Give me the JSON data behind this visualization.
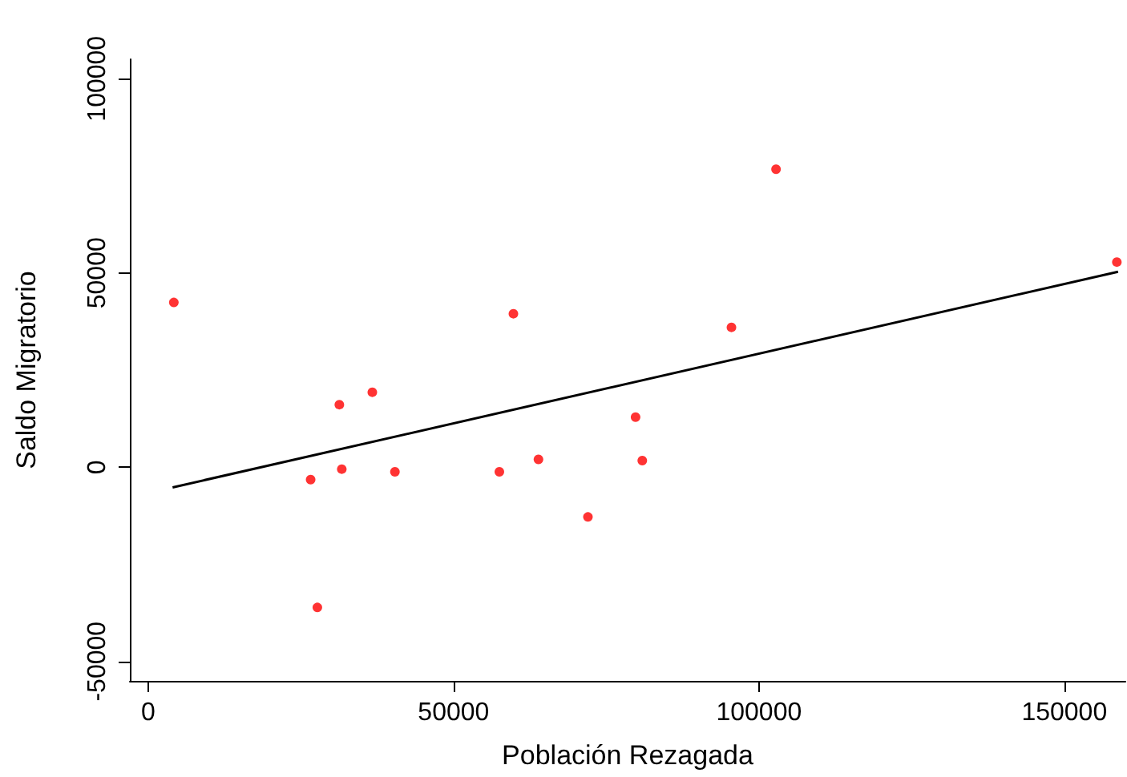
{
  "chart_data": {
    "type": "scatter",
    "xlabel": "Población Rezagada",
    "ylabel": "Saldo Migratorio",
    "xlim": [
      -3000,
      160000
    ],
    "xticks": [
      0,
      50000,
      100000,
      150000
    ],
    "ylim": [
      -55000,
      105000
    ],
    "yticks": [
      -50000,
      0,
      50000,
      100000
    ],
    "grid": false,
    "series": [
      {
        "color": "#ff0000",
        "marker": "circle",
        "x": [
          4200,
          26600,
          27700,
          31300,
          31700,
          36700,
          40400,
          57500,
          59800,
          63900,
          72000,
          79800,
          80900,
          95500,
          102800,
          158600
        ],
        "values": [
          42400,
          -3200,
          -36100,
          16100,
          -500,
          19300,
          -1200,
          -1200,
          39500,
          2000,
          -12800,
          12900,
          1700,
          36000,
          76700,
          52800
        ]
      },
      {
        "type": "line",
        "color": "#000000",
        "x": [
          4000,
          158800
        ],
        "values": [
          -5200,
          50300
        ]
      }
    ]
  }
}
